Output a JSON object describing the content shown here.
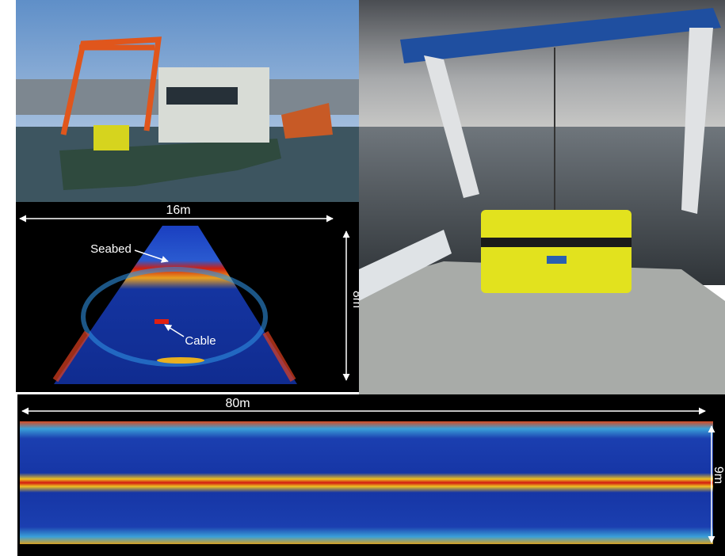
{
  "sonar_fan": {
    "width_label": "16m",
    "height_label": "8m",
    "annotations": [
      "Seabed",
      "Cable"
    ]
  },
  "sonar_strip": {
    "length_label": "80m",
    "height_label": "9m"
  }
}
